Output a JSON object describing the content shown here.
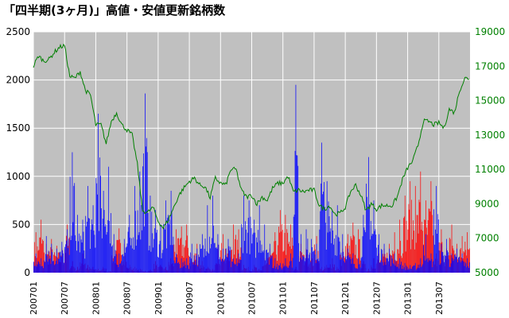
{
  "chart_data": {
    "type": "bar",
    "title": "「四半期(3ヶ月)」高値・安値更新銘柄数",
    "xlabel": "",
    "ylabel": "",
    "ylim": [
      0,
      2500
    ],
    "y2lim": [
      5000,
      19000
    ],
    "yticks": [
      "0",
      "500",
      "1000",
      "1500",
      "2000",
      "2500"
    ],
    "y2ticks": [
      "5000",
      "7000",
      "9000",
      "11000",
      "13000",
      "15000",
      "17000",
      "19000"
    ],
    "x_range": [
      "200701",
      "201312"
    ],
    "xticks": [
      "200701",
      "200707",
      "200801",
      "200807",
      "200901",
      "200907",
      "201001",
      "201007",
      "201101",
      "201107",
      "201201",
      "201207",
      "201301",
      "201307"
    ],
    "grid": true,
    "legend": "none",
    "colors": {
      "plot_bg": "#c0c0c0",
      "grid": "#ffffff",
      "high_bars": "#ff0000",
      "low_bars": "#0000ff",
      "index_line": "#008000",
      "right_axis": "#008000"
    },
    "series": [
      {
        "type": "bar",
        "color": "#ff0000",
        "points": [
          [
            "200701",
            420
          ],
          [
            "200702",
            550
          ],
          [
            "200703",
            300
          ],
          [
            "200704",
            350
          ],
          [
            "200705",
            280
          ],
          [
            "200706",
            250
          ],
          [
            "200707",
            500
          ],
          [
            "200708",
            120
          ],
          [
            "200709",
            60
          ],
          [
            "200710",
            200
          ],
          [
            "200711",
            80
          ],
          [
            "200712",
            60
          ],
          [
            "200801",
            40
          ],
          [
            "200802",
            60
          ],
          [
            "200803",
            20
          ],
          [
            "200804",
            300
          ],
          [
            "200805",
            460
          ],
          [
            "200806",
            300
          ],
          [
            "200807",
            80
          ],
          [
            "200808",
            60
          ],
          [
            "200809",
            40
          ],
          [
            "200810",
            20
          ],
          [
            "200811",
            30
          ],
          [
            "200812",
            120
          ],
          [
            "200901",
            80
          ],
          [
            "200902",
            60
          ],
          [
            "200903",
            150
          ],
          [
            "200904",
            450
          ],
          [
            "200905",
            480
          ],
          [
            "200906",
            500
          ],
          [
            "200907",
            200
          ],
          [
            "200908",
            300
          ],
          [
            "200909",
            120
          ],
          [
            "200910",
            60
          ],
          [
            "200911",
            40
          ],
          [
            "200912",
            300
          ],
          [
            "201001",
            400
          ],
          [
            "201002",
            250
          ],
          [
            "201003",
            500
          ],
          [
            "201004",
            450
          ],
          [
            "201005",
            80
          ],
          [
            "201006",
            60
          ],
          [
            "201007",
            80
          ],
          [
            "201008",
            40
          ],
          [
            "201009",
            150
          ],
          [
            "201010",
            250
          ],
          [
            "201011",
            420
          ],
          [
            "201012",
            650
          ],
          [
            "201101",
            600
          ],
          [
            "201102",
            500
          ],
          [
            "201103",
            60
          ],
          [
            "201104",
            300
          ],
          [
            "201105",
            250
          ],
          [
            "201106",
            200
          ],
          [
            "201107",
            380
          ],
          [
            "201108",
            60
          ],
          [
            "201109",
            80
          ],
          [
            "201110",
            150
          ],
          [
            "201111",
            60
          ],
          [
            "201112",
            250
          ],
          [
            "201201",
            400
          ],
          [
            "201202",
            520
          ],
          [
            "201203",
            450
          ],
          [
            "201204",
            120
          ],
          [
            "201205",
            40
          ],
          [
            "201206",
            150
          ],
          [
            "201207",
            200
          ],
          [
            "201208",
            250
          ],
          [
            "201209",
            300
          ],
          [
            "201210",
            420
          ],
          [
            "201211",
            550
          ],
          [
            "201212",
            800
          ],
          [
            "201301",
            950
          ],
          [
            "201302",
            900
          ],
          [
            "201303",
            1050
          ],
          [
            "201304",
            750
          ],
          [
            "201305",
            950
          ],
          [
            "201306",
            200
          ],
          [
            "201307",
            450
          ],
          [
            "201308",
            250
          ],
          [
            "201309",
            500
          ],
          [
            "201310",
            300
          ],
          [
            "201311",
            380
          ],
          [
            "201312",
            420
          ]
        ]
      },
      {
        "type": "bar",
        "color": "#0000ff",
        "points": [
          [
            "200701",
            200
          ],
          [
            "200702",
            150
          ],
          [
            "200703",
            380
          ],
          [
            "200704",
            300
          ],
          [
            "200705",
            250
          ],
          [
            "200706",
            320
          ],
          [
            "200707",
            450
          ],
          [
            "200708",
            1250
          ],
          [
            "200709",
            600
          ],
          [
            "200710",
            550
          ],
          [
            "200711",
            900
          ],
          [
            "200712",
            700
          ],
          [
            "200801",
            1650
          ],
          [
            "200802",
            850
          ],
          [
            "200803",
            1100
          ],
          [
            "200804",
            400
          ],
          [
            "200805",
            200
          ],
          [
            "200806",
            350
          ],
          [
            "200807",
            600
          ],
          [
            "200808",
            900
          ],
          [
            "200809",
            1050
          ],
          [
            "200810",
            1860
          ],
          [
            "200811",
            800
          ],
          [
            "200812",
            650
          ],
          [
            "200901",
            500
          ],
          [
            "200902",
            750
          ],
          [
            "200903",
            850
          ],
          [
            "200904",
            200
          ],
          [
            "200905",
            150
          ],
          [
            "200906",
            150
          ],
          [
            "200907",
            300
          ],
          [
            "200908",
            250
          ],
          [
            "200909",
            400
          ],
          [
            "200910",
            700
          ],
          [
            "200911",
            800
          ],
          [
            "200912",
            400
          ],
          [
            "201001",
            250
          ],
          [
            "201002",
            350
          ],
          [
            "201003",
            150
          ],
          [
            "201004",
            200
          ],
          [
            "201005",
            800
          ],
          [
            "201006",
            750
          ],
          [
            "201007",
            550
          ],
          [
            "201008",
            700
          ],
          [
            "201009",
            500
          ],
          [
            "201010",
            300
          ],
          [
            "201011",
            150
          ],
          [
            "201012",
            100
          ],
          [
            "201101",
            150
          ],
          [
            "201102",
            200
          ],
          [
            "201103",
            1950
          ],
          [
            "201104",
            400
          ],
          [
            "201105",
            450
          ],
          [
            "201106",
            350
          ],
          [
            "201107",
            300
          ],
          [
            "201108",
            1350
          ],
          [
            "201109",
            950
          ],
          [
            "201110",
            650
          ],
          [
            "201111",
            700
          ],
          [
            "201112",
            400
          ],
          [
            "201201",
            250
          ],
          [
            "201202",
            200
          ],
          [
            "201203",
            150
          ],
          [
            "201204",
            600
          ],
          [
            "201205",
            1200
          ],
          [
            "201206",
            750
          ],
          [
            "201207",
            400
          ],
          [
            "201208",
            300
          ],
          [
            "201209",
            250
          ],
          [
            "201210",
            200
          ],
          [
            "201211",
            150
          ],
          [
            "201212",
            100
          ],
          [
            "201301",
            80
          ],
          [
            "201302",
            100
          ],
          [
            "201303",
            150
          ],
          [
            "201304",
            400
          ],
          [
            "201305",
            200
          ],
          [
            "201306",
            900
          ],
          [
            "201307",
            300
          ],
          [
            "201308",
            350
          ],
          [
            "201309",
            200
          ],
          [
            "201310",
            250
          ],
          [
            "201311",
            200
          ],
          [
            "201312",
            150
          ]
        ]
      },
      {
        "type": "line",
        "axis": "right",
        "color": "#008000",
        "points": [
          [
            "200701",
            17000
          ],
          [
            "200702",
            17600
          ],
          [
            "200703",
            17300
          ],
          [
            "200704",
            17400
          ],
          [
            "200705",
            17800
          ],
          [
            "200706",
            18100
          ],
          [
            "200707",
            18200
          ],
          [
            "200708",
            16400
          ],
          [
            "200709",
            16300
          ],
          [
            "200710",
            16700
          ],
          [
            "200711",
            15600
          ],
          [
            "200712",
            15300
          ],
          [
            "200801",
            13600
          ],
          [
            "200802",
            13600
          ],
          [
            "200803",
            12500
          ],
          [
            "200804",
            13800
          ],
          [
            "200805",
            14300
          ],
          [
            "200806",
            13600
          ],
          [
            "200807",
            13300
          ],
          [
            "200808",
            13000
          ],
          [
            "200809",
            11300
          ],
          [
            "200810",
            8600
          ],
          [
            "200811",
            8500
          ],
          [
            "200812",
            8800
          ],
          [
            "200901",
            8000
          ],
          [
            "200902",
            7600
          ],
          [
            "200903",
            8100
          ],
          [
            "200904",
            8800
          ],
          [
            "200905",
            9500
          ],
          [
            "200906",
            9950
          ],
          [
            "200907",
            10300
          ],
          [
            "200908",
            10500
          ],
          [
            "200909",
            10100
          ],
          [
            "200910",
            10000
          ],
          [
            "200911",
            9350
          ],
          [
            "200912",
            10500
          ],
          [
            "201001",
            10200
          ],
          [
            "201002",
            10100
          ],
          [
            "201003",
            11000
          ],
          [
            "201004",
            11000
          ],
          [
            "201005",
            9800
          ],
          [
            "201006",
            9400
          ],
          [
            "201007",
            9500
          ],
          [
            "201008",
            9000
          ],
          [
            "201009",
            9400
          ],
          [
            "201010",
            9200
          ],
          [
            "201011",
            9900
          ],
          [
            "201012",
            10200
          ],
          [
            "201101",
            10200
          ],
          [
            "201102",
            10600
          ],
          [
            "201103",
            9700
          ],
          [
            "201104",
            9800
          ],
          [
            "201105",
            9700
          ],
          [
            "201106",
            9800
          ],
          [
            "201107",
            9800
          ],
          [
            "201108",
            8900
          ],
          [
            "201109",
            8700
          ],
          [
            "201110",
            8900
          ],
          [
            "201111",
            8400
          ],
          [
            "201112",
            8450
          ],
          [
            "201201",
            8800
          ],
          [
            "201202",
            9700
          ],
          [
            "201203",
            10100
          ],
          [
            "201204",
            9500
          ],
          [
            "201205",
            8600
          ],
          [
            "201206",
            9000
          ],
          [
            "201207",
            8700
          ],
          [
            "201208",
            8900
          ],
          [
            "201209",
            8900
          ],
          [
            "201210",
            8900
          ],
          [
            "201211",
            9400
          ],
          [
            "201212",
            10400
          ],
          [
            "201301",
            11100
          ],
          [
            "201302",
            11500
          ],
          [
            "201303",
            12400
          ],
          [
            "201304",
            13800
          ],
          [
            "201305",
            13800
          ],
          [
            "201306",
            13600
          ],
          [
            "201307",
            13700
          ],
          [
            "201308",
            13400
          ],
          [
            "201309",
            14500
          ],
          [
            "201310",
            14300
          ],
          [
            "201311",
            15600
          ],
          [
            "201312",
            16300
          ]
        ]
      }
    ]
  }
}
